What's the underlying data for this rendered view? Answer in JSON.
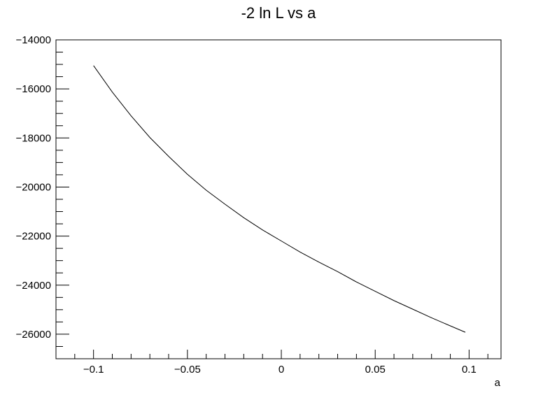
{
  "chart_data": {
    "type": "line",
    "title": "-2 ln L vs a",
    "xlabel": "a",
    "ylabel": "",
    "xlim": [
      -0.12,
      0.117
    ],
    "ylim": [
      -27000,
      -14000
    ],
    "x_major_ticks": [
      -0.1,
      -0.05,
      0,
      0.05,
      0.1
    ],
    "x_tick_labels": [
      "−0.1",
      "−0.05",
      "0",
      "0.05",
      "0.1"
    ],
    "x_minor_step": 0.01,
    "y_major_ticks": [
      -26000,
      -24000,
      -22000,
      -20000,
      -18000,
      -16000,
      -14000
    ],
    "y_tick_labels": [
      "−26000",
      "−24000",
      "−22000",
      "−20000",
      "−18000",
      "−16000",
      "−14000"
    ],
    "y_minor_step": 500,
    "grid": false,
    "legend": "none",
    "line_color": "#000000",
    "series": [
      {
        "x": [
          -0.1,
          -0.09,
          -0.08,
          -0.07,
          -0.06,
          -0.05,
          -0.04,
          -0.03,
          -0.02,
          -0.01,
          0,
          0.01,
          0.02,
          0.03,
          0.04,
          0.05,
          0.06,
          0.07,
          0.08,
          0.09,
          0.098
        ],
        "y": [
          -15050,
          -16130,
          -17100,
          -17980,
          -18750,
          -19480,
          -20130,
          -20700,
          -21250,
          -21750,
          -22200,
          -22650,
          -23060,
          -23450,
          -23870,
          -24250,
          -24630,
          -24980,
          -25330,
          -25660,
          -25920
        ]
      }
    ]
  }
}
